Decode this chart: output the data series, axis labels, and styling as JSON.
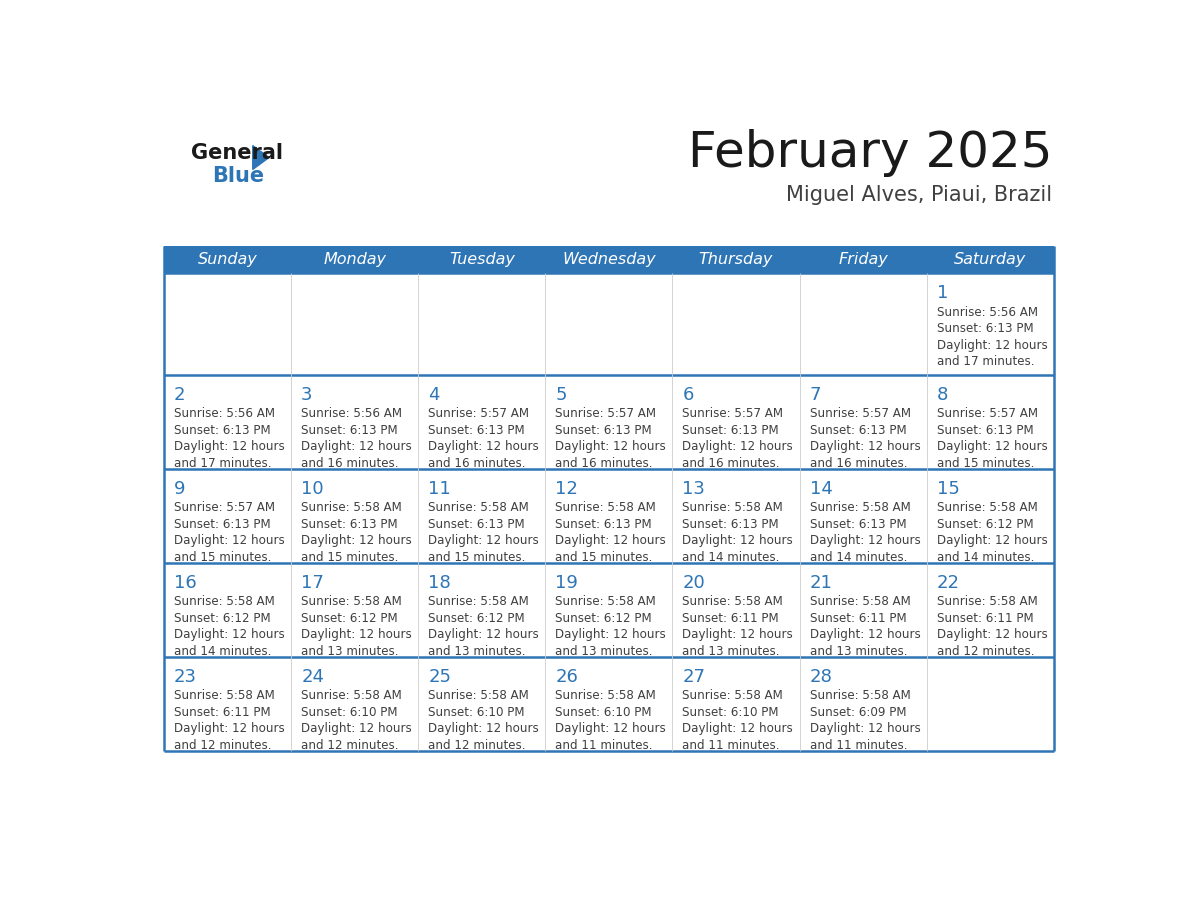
{
  "title": "February 2025",
  "subtitle": "Miguel Alves, Piaui, Brazil",
  "days_of_week": [
    "Sunday",
    "Monday",
    "Tuesday",
    "Wednesday",
    "Thursday",
    "Friday",
    "Saturday"
  ],
  "header_bg": "#2e75b6",
  "header_text": "#ffffff",
  "cell_bg": "#ffffff",
  "divider_color": "#2e75b6",
  "text_color": "#404040",
  "day_num_color": "#2e75b6",
  "title_color": "#1a1a1a",
  "subtitle_color": "#404040",
  "logo_general_color": "#1a1a1a",
  "logo_blue_color": "#2e75b6",
  "calendar": [
    [
      null,
      null,
      null,
      null,
      null,
      null,
      1
    ],
    [
      2,
      3,
      4,
      5,
      6,
      7,
      8
    ],
    [
      9,
      10,
      11,
      12,
      13,
      14,
      15
    ],
    [
      16,
      17,
      18,
      19,
      20,
      21,
      22
    ],
    [
      23,
      24,
      25,
      26,
      27,
      28,
      null
    ]
  ],
  "cell_data": {
    "1": {
      "sunrise": "5:56 AM",
      "sunset": "6:13 PM",
      "daylight": "12 hours and 17 minutes."
    },
    "2": {
      "sunrise": "5:56 AM",
      "sunset": "6:13 PM",
      "daylight": "12 hours and 17 minutes."
    },
    "3": {
      "sunrise": "5:56 AM",
      "sunset": "6:13 PM",
      "daylight": "12 hours and 16 minutes."
    },
    "4": {
      "sunrise": "5:57 AM",
      "sunset": "6:13 PM",
      "daylight": "12 hours and 16 minutes."
    },
    "5": {
      "sunrise": "5:57 AM",
      "sunset": "6:13 PM",
      "daylight": "12 hours and 16 minutes."
    },
    "6": {
      "sunrise": "5:57 AM",
      "sunset": "6:13 PM",
      "daylight": "12 hours and 16 minutes."
    },
    "7": {
      "sunrise": "5:57 AM",
      "sunset": "6:13 PM",
      "daylight": "12 hours and 16 minutes."
    },
    "8": {
      "sunrise": "5:57 AM",
      "sunset": "6:13 PM",
      "daylight": "12 hours and 15 minutes."
    },
    "9": {
      "sunrise": "5:57 AM",
      "sunset": "6:13 PM",
      "daylight": "12 hours and 15 minutes."
    },
    "10": {
      "sunrise": "5:58 AM",
      "sunset": "6:13 PM",
      "daylight": "12 hours and 15 minutes."
    },
    "11": {
      "sunrise": "5:58 AM",
      "sunset": "6:13 PM",
      "daylight": "12 hours and 15 minutes."
    },
    "12": {
      "sunrise": "5:58 AM",
      "sunset": "6:13 PM",
      "daylight": "12 hours and 15 minutes."
    },
    "13": {
      "sunrise": "5:58 AM",
      "sunset": "6:13 PM",
      "daylight": "12 hours and 14 minutes."
    },
    "14": {
      "sunrise": "5:58 AM",
      "sunset": "6:13 PM",
      "daylight": "12 hours and 14 minutes."
    },
    "15": {
      "sunrise": "5:58 AM",
      "sunset": "6:12 PM",
      "daylight": "12 hours and 14 minutes."
    },
    "16": {
      "sunrise": "5:58 AM",
      "sunset": "6:12 PM",
      "daylight": "12 hours and 14 minutes."
    },
    "17": {
      "sunrise": "5:58 AM",
      "sunset": "6:12 PM",
      "daylight": "12 hours and 13 minutes."
    },
    "18": {
      "sunrise": "5:58 AM",
      "sunset": "6:12 PM",
      "daylight": "12 hours and 13 minutes."
    },
    "19": {
      "sunrise": "5:58 AM",
      "sunset": "6:12 PM",
      "daylight": "12 hours and 13 minutes."
    },
    "20": {
      "sunrise": "5:58 AM",
      "sunset": "6:11 PM",
      "daylight": "12 hours and 13 minutes."
    },
    "21": {
      "sunrise": "5:58 AM",
      "sunset": "6:11 PM",
      "daylight": "12 hours and 13 minutes."
    },
    "22": {
      "sunrise": "5:58 AM",
      "sunset": "6:11 PM",
      "daylight": "12 hours and 12 minutes."
    },
    "23": {
      "sunrise": "5:58 AM",
      "sunset": "6:11 PM",
      "daylight": "12 hours and 12 minutes."
    },
    "24": {
      "sunrise": "5:58 AM",
      "sunset": "6:10 PM",
      "daylight": "12 hours and 12 minutes."
    },
    "25": {
      "sunrise": "5:58 AM",
      "sunset": "6:10 PM",
      "daylight": "12 hours and 12 minutes."
    },
    "26": {
      "sunrise": "5:58 AM",
      "sunset": "6:10 PM",
      "daylight": "12 hours and 11 minutes."
    },
    "27": {
      "sunrise": "5:58 AM",
      "sunset": "6:10 PM",
      "daylight": "12 hours and 11 minutes."
    },
    "28": {
      "sunrise": "5:58 AM",
      "sunset": "6:09 PM",
      "daylight": "12 hours and 11 minutes."
    }
  }
}
